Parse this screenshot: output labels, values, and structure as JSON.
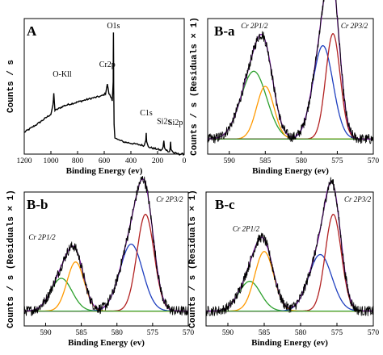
{
  "chart_data": [
    {
      "panel": "A",
      "type": "line",
      "xlabel": "Binding Energy (ev)",
      "ylabel": "Counts / s",
      "xlim": [
        1200,
        0
      ],
      "x_ticks": [
        1200,
        1000,
        800,
        600,
        400,
        200,
        0
      ],
      "annotations": [
        {
          "text": "O1s",
          "x": 531
        },
        {
          "text": "O-Kll",
          "x": 978
        },
        {
          "text": "Cr2p",
          "x": 577
        },
        {
          "text": "C1s",
          "x": 285
        },
        {
          "text": "Si2s",
          "x": 153
        },
        {
          "text": "Si2p",
          "x": 102
        }
      ],
      "series": [
        {
          "color": "#000000",
          "x": [
            1200,
            1100,
            1000,
            985,
            978,
            970,
            900,
            800,
            700,
            620,
            590,
            577,
            565,
            545,
            540,
            533,
            531,
            529,
            526,
            520,
            500,
            450,
            400,
            350,
            300,
            288,
            285,
            282,
            270,
            240,
            200,
            170,
            158,
            153,
            148,
            130,
            110,
            105,
            102,
            99,
            80,
            40,
            0
          ],
          "y": [
            18,
            25,
            33,
            40,
            50,
            36,
            40,
            43,
            46,
            48,
            50,
            58,
            50,
            46,
            44,
            60,
            100,
            54,
            24,
            14,
            12,
            10,
            9,
            8,
            7,
            12,
            18,
            10,
            6,
            5,
            4,
            3,
            6,
            11,
            5,
            3,
            2,
            6,
            10,
            4,
            1,
            0,
            0
          ]
        }
      ]
    },
    {
      "panel": "B-a",
      "type": "line",
      "xlabel": "Binding Energy (ev)",
      "ylabel": "Counts / s  (Residuals × 1)",
      "xlim": [
        593,
        570
      ],
      "x_ticks": [
        590,
        585,
        580,
        575,
        570
      ],
      "peak_labels": [
        {
          "text": "Cr 2P1/2",
          "x": 586.5
        },
        {
          "text": "Cr 2P3/2",
          "x": 574.5
        }
      ],
      "baseline": 10,
      "components": [
        {
          "color": "#2ca02c",
          "center": 586.6,
          "height": 45,
          "width": 1.8
        },
        {
          "color": "#ff9900",
          "center": 585.0,
          "height": 35,
          "width": 1.2
        },
        {
          "color": "#1f3fbf",
          "center": 577.0,
          "height": 62,
          "width": 1.4
        },
        {
          "color": "#b22222",
          "center": 575.6,
          "height": 70,
          "width": 1.0
        }
      ]
    },
    {
      "panel": "B-b",
      "type": "line",
      "xlabel": "Binding Energy (ev)",
      "ylabel": "Counts / s  (Residuals × 1)",
      "xlim": [
        593,
        570
      ],
      "x_ticks": [
        590,
        585,
        580,
        575,
        570
      ],
      "peak_labels": [
        {
          "text": "Cr 2P1/2",
          "x": 590.5
        },
        {
          "text": "Cr 2P3/2",
          "x": 574.5
        }
      ],
      "baseline": 10,
      "components": [
        {
          "color": "#2ca02c",
          "center": 587.8,
          "height": 22,
          "width": 1.5
        },
        {
          "color": "#ff9900",
          "center": 585.8,
          "height": 33,
          "width": 1.2
        },
        {
          "color": "#1f3fbf",
          "center": 578.0,
          "height": 45,
          "width": 1.6
        },
        {
          "color": "#b22222",
          "center": 576.0,
          "height": 65,
          "width": 1.2
        }
      ]
    },
    {
      "panel": "B-c",
      "type": "line",
      "xlabel": "Binding Energy (ev)",
      "ylabel": "Counts / s  (Residuals × 1)",
      "xlim": [
        593,
        570
      ],
      "x_ticks": [
        590,
        585,
        580,
        575,
        570
      ],
      "peak_labels": [
        {
          "text": "Cr 2P1/2",
          "x": 587.5
        },
        {
          "text": "Cr 2P3/2",
          "x": 574.0
        }
      ],
      "baseline": 10,
      "components": [
        {
          "color": "#2ca02c",
          "center": 587.0,
          "height": 20,
          "width": 1.5
        },
        {
          "color": "#ff9900",
          "center": 585.0,
          "height": 40,
          "width": 1.3
        },
        {
          "color": "#1f3fbf",
          "center": 577.3,
          "height": 38,
          "width": 1.6
        },
        {
          "color": "#b22222",
          "center": 575.5,
          "height": 65,
          "width": 1.1
        }
      ]
    }
  ]
}
